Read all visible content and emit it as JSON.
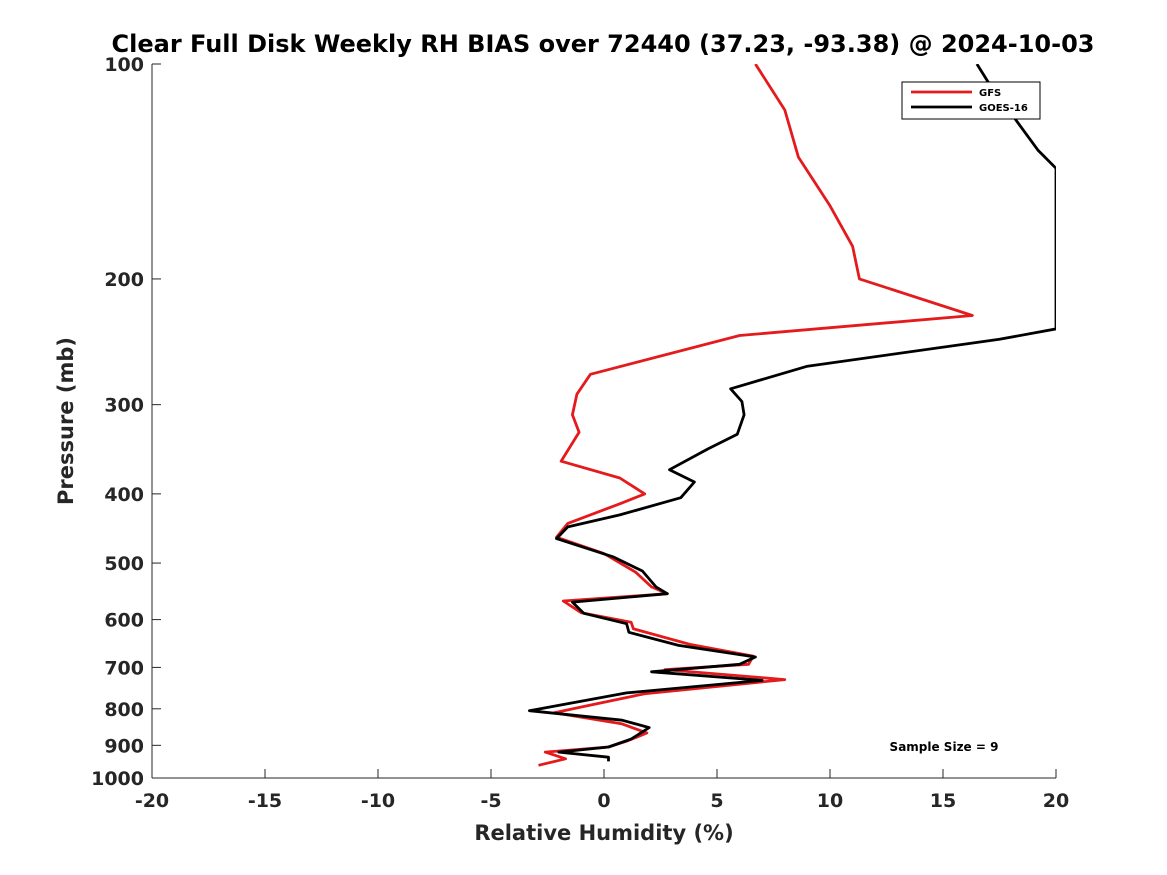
{
  "chart_data": {
    "type": "line",
    "title": "Clear Full Disk Weekly RH BIAS over 72440 (37.23, -93.38) @ 2024-10-03",
    "xlabel": "Relative Humidity (%)",
    "ylabel": "Pressure (mb)",
    "xlim": [
      -20,
      20
    ],
    "ylim": [
      100,
      1000
    ],
    "y_scale": "log",
    "y_reversed": true,
    "x_ticks": [
      -20,
      -15,
      -10,
      -5,
      0,
      5,
      10,
      15,
      20
    ],
    "x_tick_labels": [
      "-20",
      "-15",
      "-10",
      "-5",
      "0",
      "5",
      "10",
      "15",
      "20"
    ],
    "y_ticks": [
      100,
      200,
      300,
      400,
      500,
      600,
      700,
      800,
      900,
      1000
    ],
    "y_tick_labels": [
      "100",
      "200",
      "300",
      "400",
      "500",
      "600",
      "700",
      "800",
      "900",
      "1000"
    ],
    "grid": false,
    "legend_position": "top-right",
    "annotation": "Sample Size = 9",
    "series": [
      {
        "name": "GFS",
        "color": "#e41a1c",
        "points": [
          [
            6.7,
            100
          ],
          [
            8.0,
            116
          ],
          [
            8.6,
            135
          ],
          [
            10.0,
            158
          ],
          [
            11.0,
            180
          ],
          [
            11.3,
            200
          ],
          [
            16.3,
            225
          ],
          [
            6.0,
            240
          ],
          [
            -0.6,
            272
          ],
          [
            -1.2,
            290
          ],
          [
            -1.4,
            310
          ],
          [
            -1.1,
            328
          ],
          [
            -1.9,
            360
          ],
          [
            0.7,
            380
          ],
          [
            1.8,
            400
          ],
          [
            0.7,
            413
          ],
          [
            -1.6,
            440
          ],
          [
            -2.1,
            460
          ],
          [
            0.0,
            485
          ],
          [
            1.4,
            515
          ],
          [
            2.1,
            540
          ],
          [
            2.8,
            552
          ],
          [
            -1.8,
            565
          ],
          [
            -1.0,
            587
          ],
          [
            1.2,
            605
          ],
          [
            1.3,
            618
          ],
          [
            3.8,
            650
          ],
          [
            6.6,
            675
          ],
          [
            6.4,
            693
          ],
          [
            2.7,
            705
          ],
          [
            8.0,
            728
          ],
          [
            1.8,
            762
          ],
          [
            -0.9,
            794
          ],
          [
            -2.2,
            810
          ],
          [
            0.8,
            840
          ],
          [
            1.9,
            865
          ],
          [
            1.0,
            888
          ],
          [
            0.2,
            905
          ],
          [
            -2.6,
            920
          ],
          [
            -1.7,
            940
          ],
          [
            -2.9,
            960
          ]
        ]
      },
      {
        "name": "GOES-16",
        "color": "#000000",
        "points": [
          [
            16.5,
            100
          ],
          [
            17.0,
            106
          ],
          [
            19.2,
            132
          ],
          [
            20.0,
            140
          ],
          [
            20.0,
            235
          ],
          [
            17.5,
            243
          ],
          [
            9.0,
            265
          ],
          [
            5.6,
            285
          ],
          [
            6.1,
            297
          ],
          [
            6.2,
            310
          ],
          [
            5.9,
            330
          ],
          [
            4.6,
            346
          ],
          [
            2.9,
            370
          ],
          [
            4.0,
            385
          ],
          [
            3.4,
            405
          ],
          [
            0.7,
            428
          ],
          [
            -1.6,
            445
          ],
          [
            -2.1,
            462
          ],
          [
            0.4,
            490
          ],
          [
            1.7,
            513
          ],
          [
            2.3,
            540
          ],
          [
            2.8,
            552
          ],
          [
            -1.4,
            567
          ],
          [
            -0.9,
            588
          ],
          [
            1.0,
            608
          ],
          [
            1.1,
            625
          ],
          [
            3.3,
            652
          ],
          [
            6.7,
            677
          ],
          [
            6.0,
            693
          ],
          [
            2.1,
            710
          ],
          [
            7.0,
            730
          ],
          [
            1.0,
            760
          ],
          [
            -3.3,
            805
          ],
          [
            0.8,
            830
          ],
          [
            2.0,
            850
          ],
          [
            1.2,
            882
          ],
          [
            0.2,
            905
          ],
          [
            -2.0,
            920
          ],
          [
            0.2,
            935
          ],
          [
            0.2,
            948
          ]
        ]
      }
    ]
  }
}
